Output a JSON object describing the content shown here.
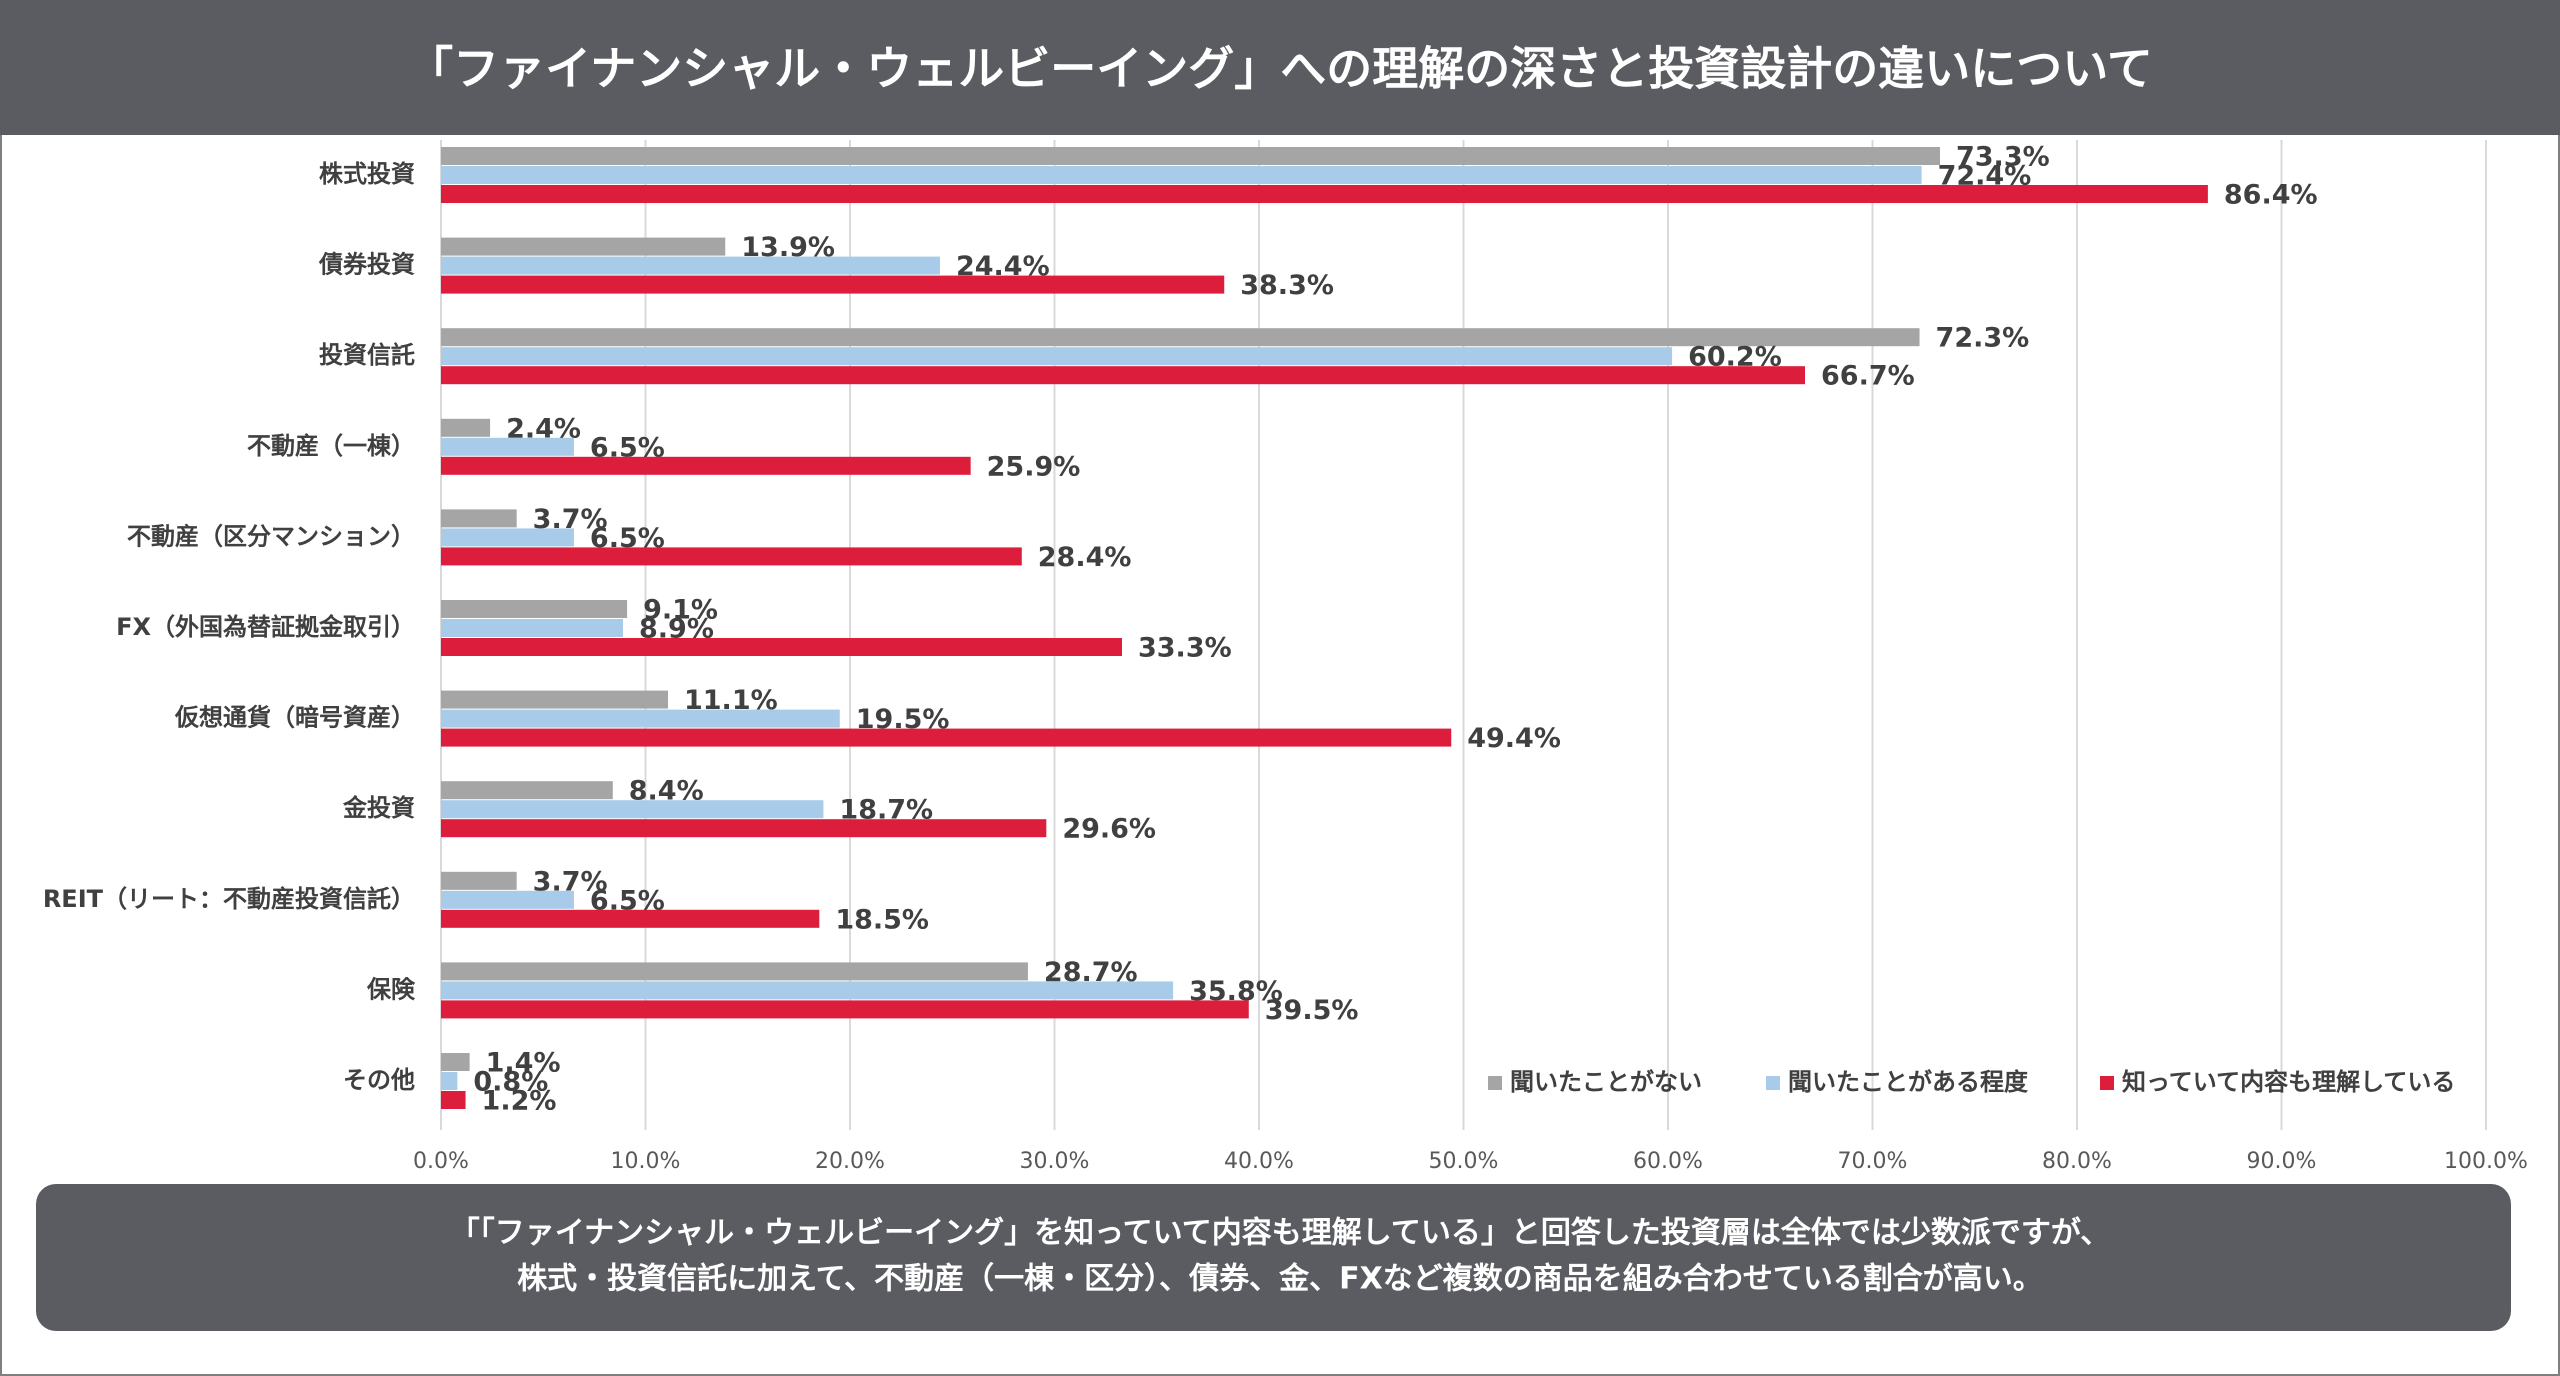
{
  "chart_data": {
    "type": "hbar",
    "title": "「ファイナンシャル・ウェルビーイング」への理解の深さと投資設計の違いについて",
    "categories": [
      "株式投資",
      "債券投資",
      "投資信託",
      "不動産（一棟）",
      "不動産（区分マンション）",
      "FX（外国為替証拠金取引）",
      "仮想通貨（暗号資産）",
      "金投資",
      "REIT（リート：不動産投資信託）",
      "保険",
      "その他"
    ],
    "series": [
      {
        "name": "聞いたことがない",
        "color": "#a5a5a5",
        "values": [
          73.3,
          13.9,
          72.3,
          2.4,
          3.7,
          9.1,
          11.1,
          8.4,
          3.7,
          28.7,
          1.4
        ],
        "value_labels": [
          "73.3%",
          "13.9%",
          "72.3%",
          "2.4%",
          "3.7%",
          "9.1%",
          "11.1%",
          "8.4%",
          "3.7%",
          "28.7%",
          "1.4%"
        ]
      },
      {
        "name": "聞いたことがある程度",
        "color": "#a9cbea",
        "values": [
          72.4,
          24.4,
          60.2,
          6.5,
          6.5,
          8.9,
          19.5,
          18.7,
          6.5,
          35.8,
          0.8
        ],
        "value_labels": [
          "72.4%",
          "24.4%",
          "60.2%",
          "6.5%",
          "6.5%",
          "8.9%",
          "19.5%",
          "18.7%",
          "6.5%",
          "35.8%",
          "0.8%"
        ]
      },
      {
        "name": "知っていて内容も理解している",
        "color": "#dc1e3c",
        "values": [
          86.4,
          38.3,
          66.7,
          25.9,
          28.4,
          33.3,
          49.4,
          29.6,
          18.5,
          39.5,
          1.2
        ],
        "value_labels": [
          "86.4%",
          "38.3%",
          "66.7%",
          "25.9%",
          "28.4%",
          "33.3%",
          "49.4%",
          "29.6%",
          "18.5%",
          "39.5%",
          "1.2%"
        ]
      }
    ],
    "xlim": [
      0,
      100
    ],
    "xticks": [
      {
        "value": 0,
        "label": "0.0%"
      },
      {
        "value": 10,
        "label": "10.0%"
      },
      {
        "value": 20,
        "label": "20.0%"
      },
      {
        "value": 30,
        "label": "30.0%"
      },
      {
        "value": 40,
        "label": "40.0%"
      },
      {
        "value": 50,
        "label": "50.0%"
      },
      {
        "value": 60,
        "label": "60.0%"
      },
      {
        "value": 70,
        "label": "70.0%"
      },
      {
        "value": 80,
        "label": "80.0%"
      },
      {
        "value": 90,
        "label": "90.0%"
      },
      {
        "value": 100,
        "label": "100.0%"
      }
    ],
    "grid": true,
    "legend": "bottom-right",
    "footnote": [
      "「「ファイナンシャル・ウェルビーイング」を知っていて内容も理解している」と回答した投資層は全体では少数派ですが、",
      "株式・投資信託に加えて、不動産（一棟・区分）、債券、金、FXなど複数の商品を組み合わせている割合が高い。"
    ]
  }
}
